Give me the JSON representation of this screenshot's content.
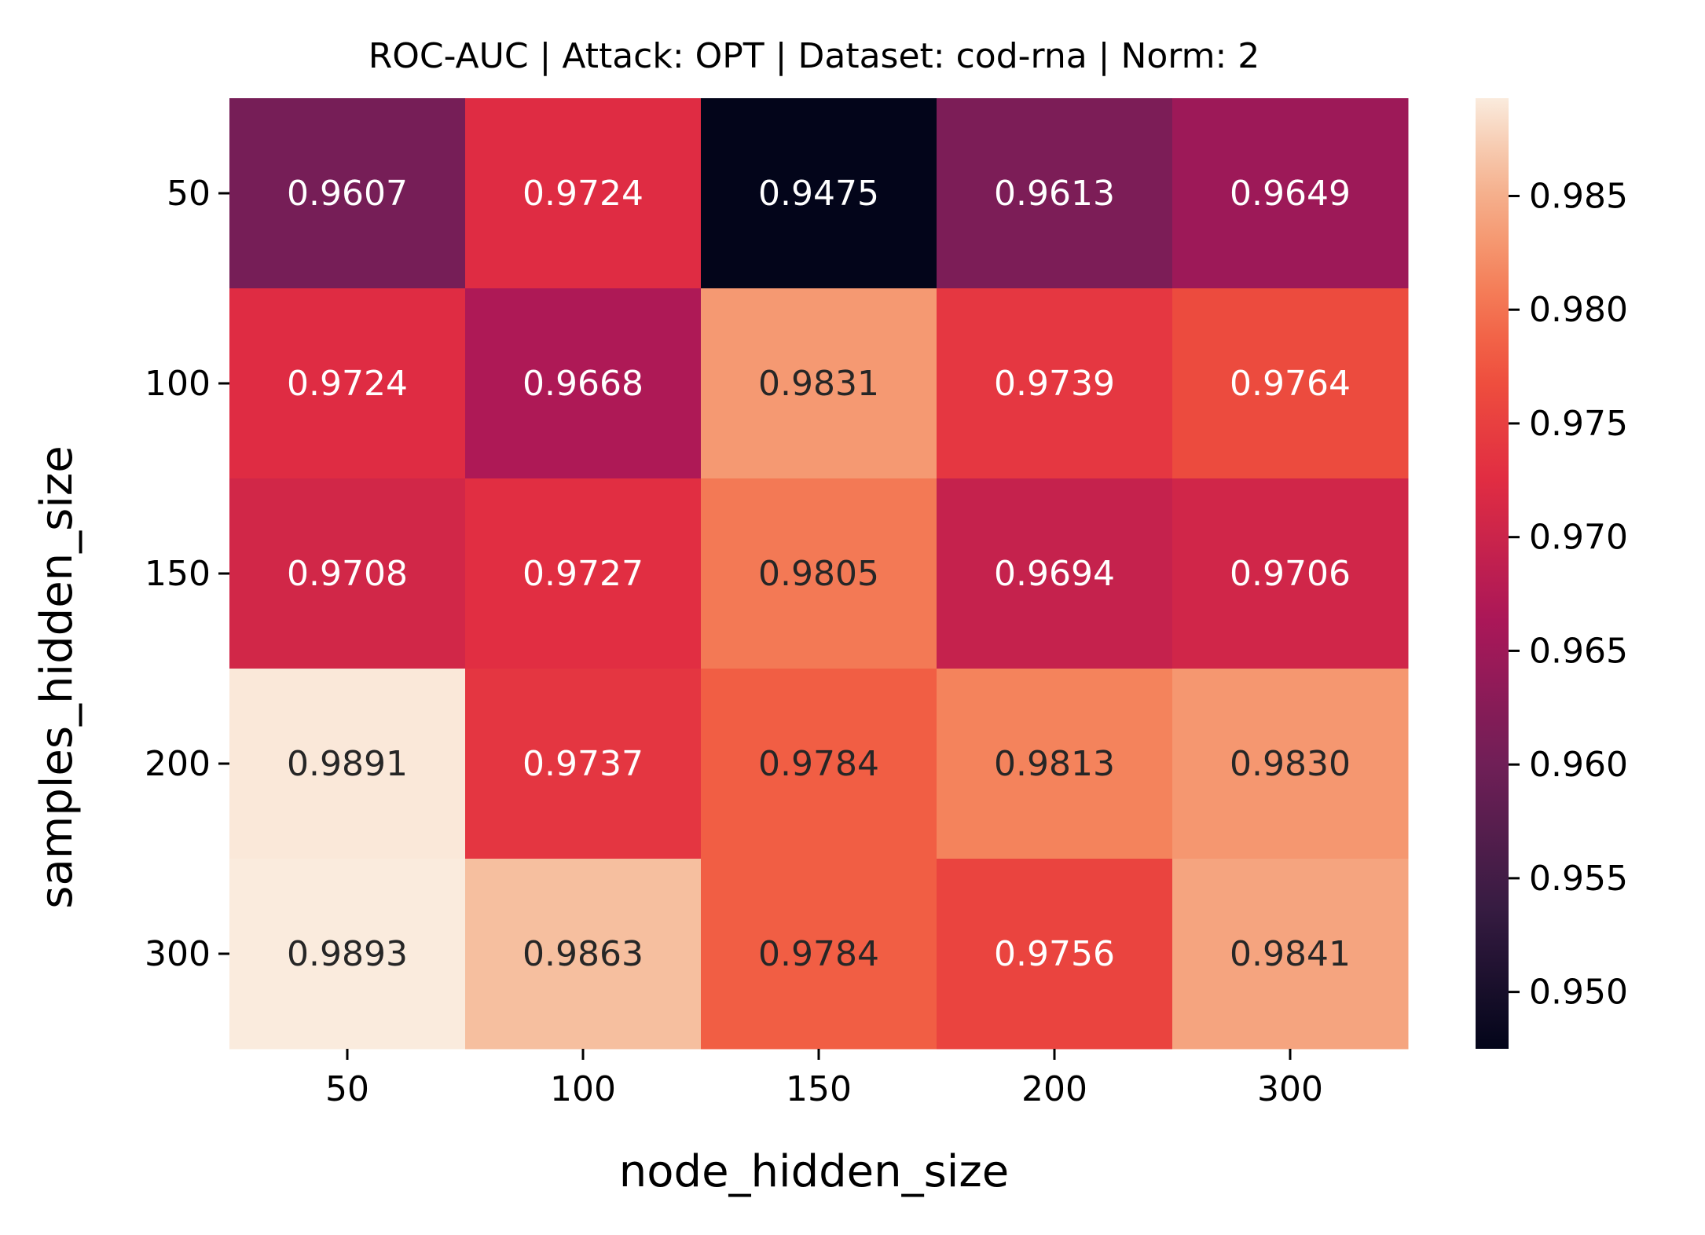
{
  "chart_data": {
    "type": "heatmap",
    "title": "ROC-AUC | Attack: OPT | Dataset: cod-rna | Norm: 2",
    "xlabel": "node_hidden_size",
    "ylabel": "samples_hidden_size",
    "x_categories": [
      "50",
      "100",
      "150",
      "200",
      "300"
    ],
    "y_categories": [
      "50",
      "100",
      "150",
      "200",
      "300"
    ],
    "values": [
      [
        0.9607,
        0.9724,
        0.9475,
        0.9613,
        0.9649
      ],
      [
        0.9724,
        0.9668,
        0.9831,
        0.9739,
        0.9764
      ],
      [
        0.9708,
        0.9727,
        0.9805,
        0.9694,
        0.9706
      ],
      [
        0.9891,
        0.9737,
        0.9784,
        0.9813,
        0.983
      ],
      [
        0.9893,
        0.9863,
        0.9784,
        0.9756,
        0.9841
      ]
    ],
    "value_format": "4 decimals",
    "colormap": "rocket",
    "colorbar": {
      "range": [
        0.9475,
        0.9893
      ],
      "ticks": [
        0.95,
        0.955,
        0.96,
        0.965,
        0.97,
        0.975,
        0.98,
        0.985
      ],
      "tick_labels": [
        "0.950",
        "0.955",
        "0.960",
        "0.965",
        "0.970",
        "0.975",
        "0.980",
        "0.985"
      ],
      "position": "right"
    },
    "grid": false,
    "legend": "none"
  }
}
